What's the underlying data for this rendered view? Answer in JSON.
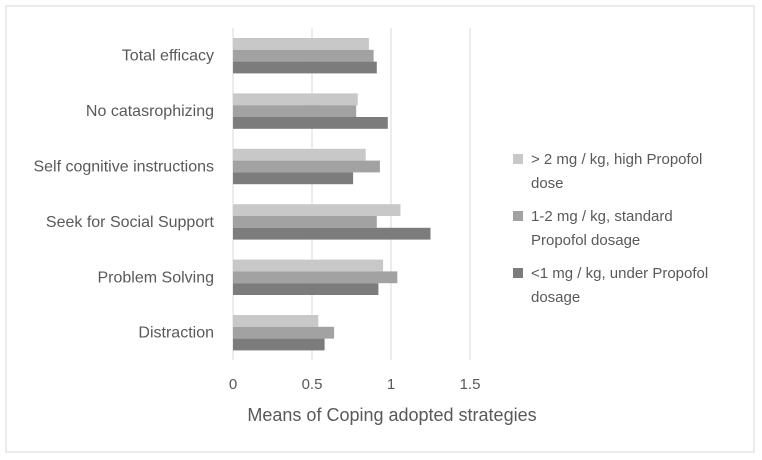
{
  "chart_data": {
    "type": "bar",
    "orientation": "horizontal",
    "title": "",
    "xlabel": "Means of Coping adopted strategies",
    "ylabel": "",
    "xlim": [
      0,
      1.5
    ],
    "xticks": [
      0,
      0.5,
      1,
      1.5
    ],
    "xtick_labels": [
      "0",
      "0.5",
      "1",
      "1.5"
    ],
    "grid": true,
    "legend_position": "right",
    "categories": [
      "Total efficacy",
      "No catasrophizing",
      "Self cognitive instructions",
      "Seek for Social Support",
      "Problem Solving",
      "Distraction"
    ],
    "series": [
      {
        "name": "> 2 mg / kg, high Propofol dose",
        "legend_lines": [
          "> 2 mg / kg, high Propofol",
          "dose"
        ],
        "color": "#c8c8c8",
        "values": [
          0.86,
          0.79,
          0.84,
          1.06,
          0.95,
          0.54
        ]
      },
      {
        "name": "1-2 mg / kg, standard Propofol dosage",
        "legend_lines": [
          "1-2 mg / kg, standard",
          "Propofol dosage"
        ],
        "color": "#a2a2a2",
        "values": [
          0.89,
          0.78,
          0.93,
          0.91,
          1.04,
          0.64
        ]
      },
      {
        "name": "<1 mg / kg, under Propofol dosage",
        "legend_lines": [
          "<1 mg / kg, under Propofol",
          "dosage"
        ],
        "color": "#7c7c7c",
        "values": [
          0.91,
          0.98,
          0.76,
          1.25,
          0.92,
          0.58
        ]
      }
    ]
  }
}
